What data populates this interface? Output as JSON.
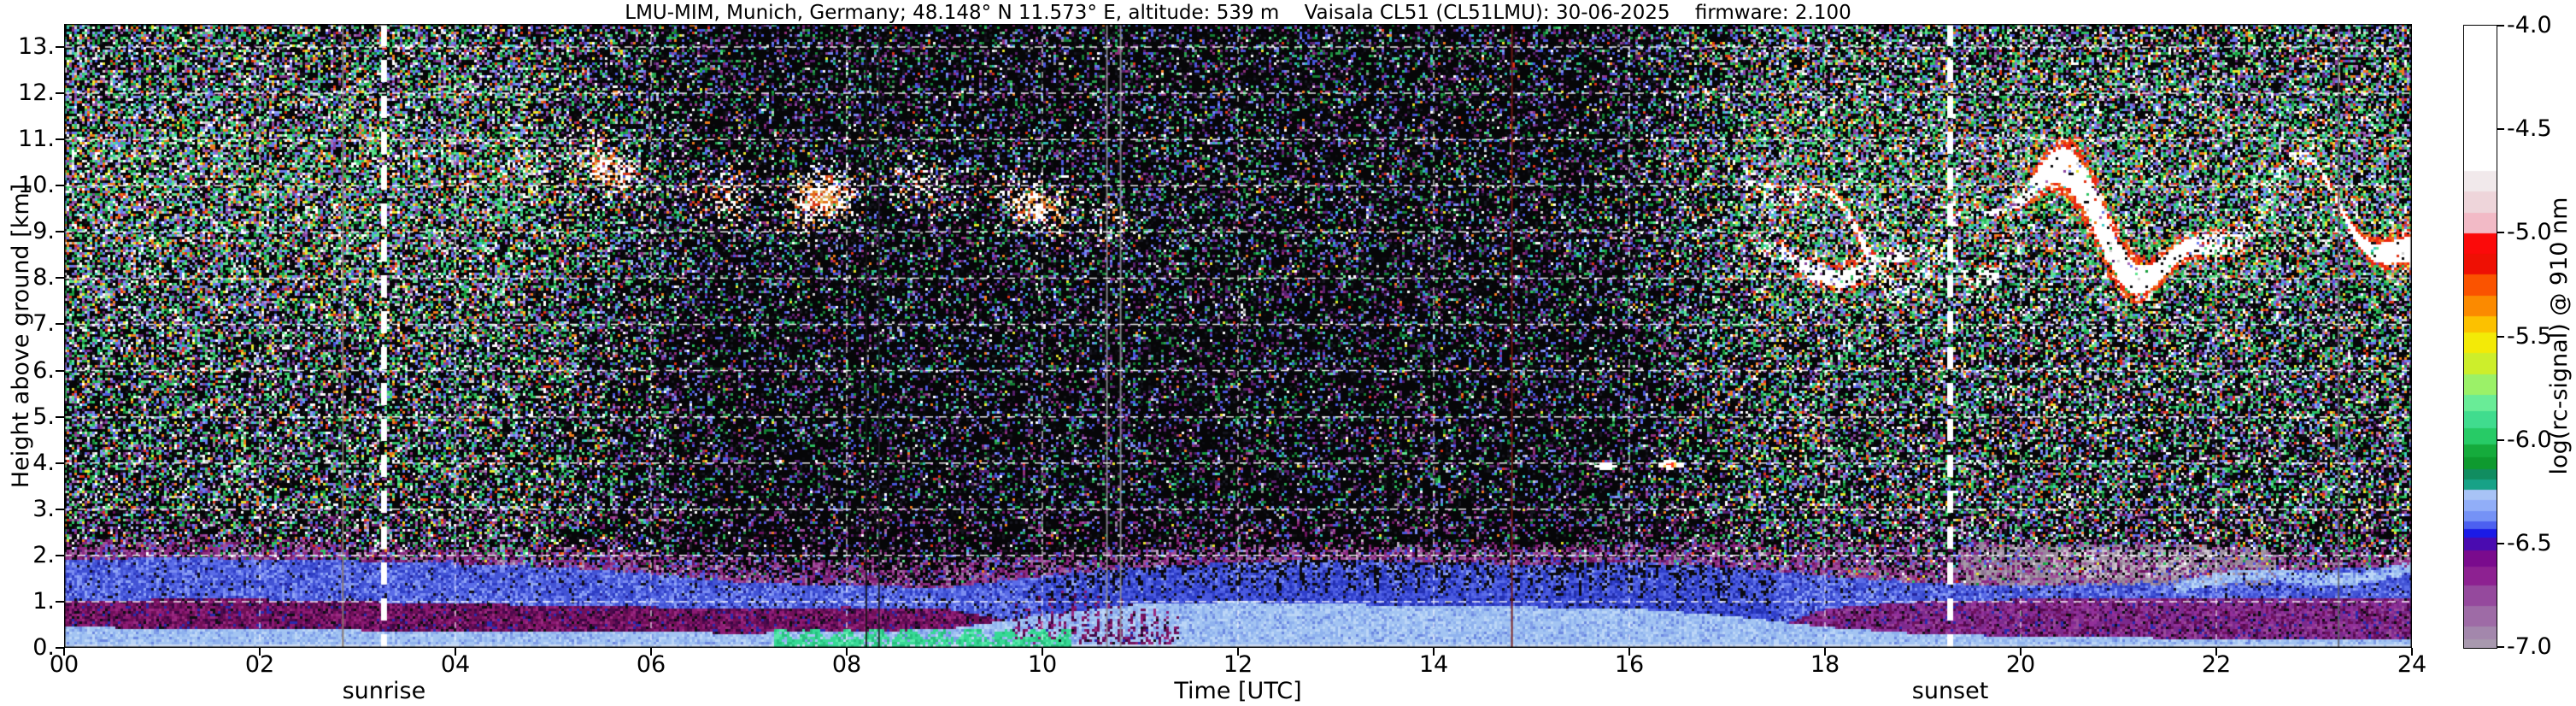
{
  "chart_data": {
    "type": "heatmap",
    "title": "LMU-MIM, Munich, Germany; 48.148° N 11.573° E, altitude: 539 m    Vaisala CL51 (CL51LMU): 30-06-2025    firmware: 2.100",
    "xlabel": "Time [UTC]",
    "ylabel": "Height above ground [km]",
    "colorbar_label": "log(rc-signal) @ 910 nm",
    "x_ticks": [
      "00",
      "02",
      "04",
      "06",
      "08",
      "10",
      "12",
      "14",
      "16",
      "18",
      "20",
      "22",
      "24"
    ],
    "y_ticks": [
      "0.",
      "1.",
      "2.",
      "3.",
      "4.",
      "5.",
      "6.",
      "7.",
      "8.",
      "9.",
      "10.",
      "11.",
      "12.",
      "13."
    ],
    "colorbar_ticks": [
      "-4.0",
      "-4.5",
      "-5.0",
      "-5.5",
      "-6.0",
      "-6.5",
      "-7.0"
    ],
    "x_range_hours": [
      0,
      24
    ],
    "y_range_km": [
      0,
      13.5
    ],
    "value_range_log": [
      -7.0,
      -4.0
    ],
    "grid": {
      "horizontal_km_step": 1,
      "vertical_hour_step": 2,
      "style": "white-dashed"
    },
    "annotations": {
      "sunrise": {
        "label": "sunrise",
        "hour": 3.27
      },
      "sunset": {
        "label": "sunset",
        "hour": 19.28
      }
    },
    "colormap_bands": [
      [
        -4.7,
        "#ffffff"
      ],
      [
        -4.8,
        "#f1e9eb"
      ],
      [
        -4.9,
        "#eed5da"
      ],
      [
        -5.0,
        "#f2bac6"
      ],
      [
        -5.1,
        "#fb0a0a"
      ],
      [
        -5.2,
        "#ee1004"
      ],
      [
        -5.3,
        "#fa5300"
      ],
      [
        -5.4,
        "#fb8a00"
      ],
      [
        -5.48,
        "#fcc100"
      ],
      [
        -5.58,
        "#f3ea07"
      ],
      [
        -5.68,
        "#cdee2b"
      ],
      [
        -5.78,
        "#9bf168"
      ],
      [
        -5.86,
        "#69ec97"
      ],
      [
        -5.94,
        "#40dc8e"
      ],
      [
        -6.02,
        "#27cb66"
      ],
      [
        -6.08,
        "#15ab3c"
      ],
      [
        -6.14,
        "#0e9a2f"
      ],
      [
        -6.19,
        "#108d60"
      ],
      [
        -6.24,
        "#17a287"
      ],
      [
        -6.29,
        "#a8c3f6"
      ],
      [
        -6.34,
        "#91aef8"
      ],
      [
        -6.39,
        "#7592f6"
      ],
      [
        -6.43,
        "#4c60f0"
      ],
      [
        -6.47,
        "#1b1be7"
      ],
      [
        -6.53,
        "#4a0bb0"
      ],
      [
        -6.61,
        "#7a0b8d"
      ],
      [
        -6.7,
        "#8d2191"
      ],
      [
        -6.8,
        "#95499d"
      ],
      [
        -6.9,
        "#9e6ba6"
      ],
      [
        -6.96,
        "#a387ac"
      ],
      [
        -7.01,
        "#a899ae"
      ]
    ],
    "features": {
      "boundary_layer": {
        "hours_step": 1,
        "surface_lightblue_top_km": [
          0.45,
          0.42,
          0.4,
          0.38,
          0.36,
          0.34,
          0.33,
          0.32,
          0.34,
          0.4,
          0.7,
          0.95,
          1.0,
          0.95,
          0.9,
          0.88,
          0.85,
          0.7,
          0.45,
          0.3,
          0.25,
          0.22,
          0.2,
          0.18,
          0.18
        ],
        "crimson_aerosol_top_km": [
          1.0,
          1.05,
          1.05,
          1.0,
          0.95,
          0.92,
          0.88,
          0.85,
          0.88,
          0.85,
          0.45,
          0.0,
          0.0,
          0.0,
          0.0,
          0.0,
          0.0,
          0.0,
          0.85,
          1.0,
          1.05,
          1.1,
          1.1,
          1.08,
          1.05
        ],
        "blue_layer_top_km": [
          1.9,
          1.95,
          1.92,
          1.88,
          1.82,
          1.75,
          1.6,
          1.4,
          1.35,
          1.3,
          1.55,
          1.75,
          1.85,
          1.9,
          1.85,
          1.8,
          1.85,
          1.75,
          1.55,
          1.4,
          1.35,
          1.4,
          1.55,
          1.7,
          1.75
        ],
        "purple_fade_top_km": [
          2.35,
          2.4,
          2.35,
          2.3,
          2.25,
          2.18,
          2.1,
          1.95,
          1.9,
          1.9,
          2.0,
          2.1,
          2.2,
          2.3,
          2.28,
          2.22,
          2.3,
          2.3,
          2.2,
          2.3,
          2.35,
          2.3,
          2.2,
          2.1,
          2.05
        ]
      },
      "surface_green_patch": {
        "hours": [
          7.25,
          10.3
        ],
        "top_km": 0.4
      },
      "daytime_convective_plumes": {
        "hours": [
          10,
          17.5
        ],
        "top_km_range": [
          1.2,
          2.1
        ]
      },
      "morning_cirrus": {
        "hours": [
          4.35,
          11.05
        ],
        "height_km": [
          9.2,
          10.8
        ]
      },
      "evening_cirrus": {
        "hours": [
          17.15,
          24.0
        ],
        "height_km": [
          7.7,
          11.3
        ]
      },
      "small_clouds": [
        {
          "hour": 15.76,
          "height_km": 3.93
        },
        {
          "hour": 16.42,
          "height_km": 3.96
        }
      ],
      "evening_haze_band": {
        "hours": [
          19.4,
          22.6
        ],
        "height_km": [
          1.35,
          2.25
        ]
      },
      "evening_lifted_layer": {
        "hours": [
          21.6,
          24.0
        ],
        "height_km": [
          1.25,
          1.85
        ]
      },
      "data_gap_hours": [
        2.85,
        8.2,
        8.33,
        10.66,
        10.8,
        14.8,
        23.25
      ]
    },
    "noise_palettes": {
      "night": [
        [
          "#ffffff",
          0.1
        ],
        [
          "#5fe28e",
          0.1
        ],
        [
          "#2fc263",
          0.14
        ],
        [
          "#169e3c",
          0.08
        ],
        [
          "#ef7d1e",
          0.07
        ],
        [
          "#e03214",
          0.05
        ],
        [
          "#e8e72c",
          0.04
        ],
        [
          "#6a79ee",
          0.12
        ],
        [
          "#8d9bf4",
          0.05
        ],
        [
          "#8a43a0",
          0.08
        ],
        [
          "#38cac2",
          0.04
        ],
        [
          "#a569b8",
          0.05
        ],
        [
          "#d0d0d0",
          0.08
        ]
      ],
      "dim": [
        [
          "#591f6e",
          0.24
        ],
        [
          "#4a57dd",
          0.17
        ],
        [
          "#157f35",
          0.12
        ],
        [
          "#7a8af0",
          0.07
        ],
        [
          "#93307e",
          0.08
        ],
        [
          "#2aa04e",
          0.06
        ],
        [
          "#30b8b0",
          0.04
        ],
        [
          "#8a8a8a",
          0.03
        ],
        [
          "#c8c8c8",
          0.01
        ],
        [
          "#0b0b10",
          0.18
        ]
      ],
      "mauve": [
        [
          "#8c2a82",
          0.26
        ],
        [
          "#a04c9a",
          0.18
        ],
        [
          "#6e1260",
          0.16
        ],
        [
          "#9a7aa4",
          0.12
        ],
        [
          "#5a5ade",
          0.08
        ],
        [
          "#3a3ad0",
          0.05
        ],
        [
          "#c0a8c4",
          0.05
        ],
        [
          "#101014",
          0.1
        ]
      ],
      "crimson": [
        [
          "#701058",
          0.3
        ],
        [
          "#8c1a74",
          0.22
        ],
        [
          "#50094e",
          0.16
        ],
        [
          "#3a0742",
          0.1
        ],
        [
          "#9a2a80",
          0.1
        ],
        [
          "#2a2ab0",
          0.06
        ],
        [
          "#0e0e12",
          0.06
        ]
      ],
      "crimson_evening": [
        [
          "#7c2a8c",
          0.28
        ],
        [
          "#93309a",
          0.22
        ],
        [
          "#6e1260",
          0.18
        ],
        [
          "#50094e",
          0.12
        ],
        [
          "#9a4a9a",
          0.1
        ],
        [
          "#2a2ab0",
          0.05
        ],
        [
          "#0e0e12",
          0.05
        ]
      ],
      "blue": [
        [
          "#4253d5",
          0.3
        ],
        [
          "#5a6ce8",
          0.22
        ],
        [
          "#7b8df2",
          0.16
        ],
        [
          "#2e3ec6",
          0.14
        ],
        [
          "#8fa5f5",
          0.08
        ],
        [
          "#24249e",
          0.05
        ],
        [
          "#101018",
          0.05
        ]
      ],
      "blue_dark": [
        [
          "#3040cc",
          0.3
        ],
        [
          "#4a5ae0",
          0.3
        ],
        [
          "#2330b0",
          0.2
        ],
        [
          "#5a6ce8",
          0.12
        ],
        [
          "#101020",
          0.08
        ]
      ],
      "light_blue": [
        [
          "#a3c4f2",
          0.42
        ],
        [
          "#8fb2ee",
          0.25
        ],
        [
          "#bcd6f7",
          0.18
        ],
        [
          "#7f9ce8",
          0.1
        ],
        [
          "#6a86e0",
          0.05
        ]
      ],
      "green_surface": [
        [
          "#36d995",
          0.5
        ],
        [
          "#27c07f",
          0.3
        ],
        [
          "#59e8ab",
          0.2
        ]
      ],
      "gray_haze": [
        [
          "#9b8a9d",
          0.4
        ],
        [
          "#a79aa9",
          0.35
        ],
        [
          "#8d7690",
          0.25
        ]
      ],
      "gray_haze_light": [
        [
          "#cfc6cf",
          0.55
        ],
        [
          "#bdb0bf",
          0.45
        ]
      ],
      "cirrus_fringe": [
        [
          "#ea2810",
          0.5
        ],
        [
          "#f06818",
          0.3
        ],
        [
          "#f8f0ea",
          0.2
        ]
      ],
      "cirrus_halo": [
        [
          "#2db054",
          0.45
        ],
        [
          "#57cf7e",
          0.25
        ],
        [
          "#e2a23c",
          0.15
        ],
        [
          "#e84830",
          0.15
        ]
      ],
      "morning_fringe": [
        [
          "#e2701c",
          0.35
        ],
        [
          "#d8381a",
          0.3
        ],
        [
          "#e8b24a",
          0.2
        ],
        [
          "#caa87c",
          0.15
        ]
      ]
    },
    "background_color": "#ffffff"
  }
}
